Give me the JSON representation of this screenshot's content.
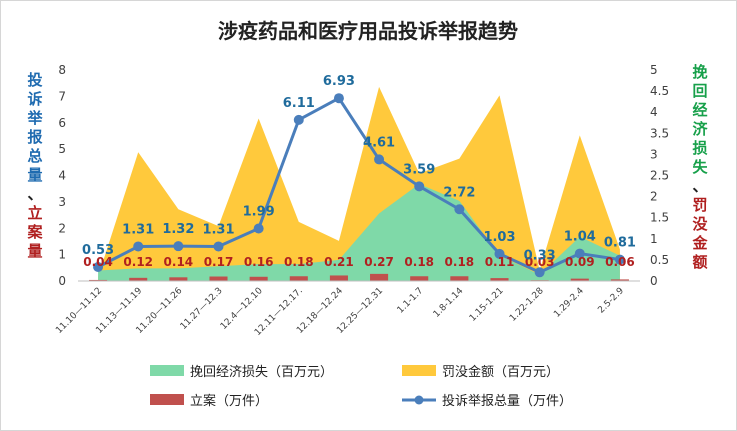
{
  "chart_data": {
    "type": "combo",
    "title": "涉疫药品和医疗用品投诉举报趋势",
    "left_axis_label": {
      "part1": [
        "投",
        "诉",
        "举",
        "报",
        "总",
        "量"
      ],
      "sep": "、",
      "part2": [
        "立",
        "案",
        "量"
      ]
    },
    "right_axis_label": {
      "part1": [
        "挽",
        "回",
        "经",
        "济",
        "损",
        "失"
      ],
      "sep": "、",
      "part2": [
        "罚",
        "没",
        "金",
        "额"
      ]
    },
    "categories": [
      "11.10—11.12",
      "11.13—11.19",
      "11.20—11.26",
      "11.27—12.3",
      "12.4—12.10",
      "12.11—12.17.",
      "12.18—12.24",
      "12.25—12.31",
      "1.1-1.7",
      "1.8-1.14",
      "1.15-1.21",
      "1.22-1.28",
      "1.29-2.4",
      "2.5-2.9"
    ],
    "y_left": {
      "min": 0,
      "max": 8,
      "ticks": [
        "0",
        "1",
        "2",
        "3",
        "4",
        "5",
        "6",
        "7",
        "8"
      ]
    },
    "y_right": {
      "min": 0,
      "max": 5,
      "ticks": [
        "0",
        "0.5",
        "1",
        "1.5",
        "2",
        "2.5",
        "3",
        "3.5",
        "4",
        "4.5",
        "5"
      ]
    },
    "series": [
      {
        "name": "挽回经济损失（百万元）",
        "type": "area",
        "axis": "right",
        "color": "#7fd9a8",
        "values": [
          0.25,
          0.3,
          0.3,
          0.35,
          0.4,
          0.4,
          0.5,
          1.6,
          2.3,
          1.9,
          0.6,
          0.15,
          1.05,
          0.6
        ]
      },
      {
        "name": "罚没金额（百万元）",
        "type": "area",
        "axis": "right",
        "color": "#ffc93c",
        "values": [
          0.1,
          3.05,
          1.7,
          1.3,
          3.85,
          1.4,
          0.95,
          4.6,
          2.55,
          2.9,
          4.4,
          0.25,
          3.45,
          0.75
        ]
      },
      {
        "name": "立案（万件）",
        "type": "bar",
        "axis": "left",
        "color": "#c0504d",
        "values": [
          0.04,
          0.12,
          0.14,
          0.17,
          0.16,
          0.18,
          0.21,
          0.27,
          0.18,
          0.18,
          0.11,
          0.03,
          0.09,
          0.06
        ],
        "labels": [
          "0.04",
          "0.12",
          "0.14",
          "0.17",
          "0.16",
          "0.18",
          "0.21",
          "0.27",
          "0.18",
          "0.18",
          "0.11",
          "0.03",
          "0.09",
          "0.06"
        ]
      },
      {
        "name": "投诉举报总量（万件）",
        "type": "line",
        "axis": "left",
        "color": "#4a7ebb",
        "values": [
          0.53,
          1.31,
          1.32,
          1.31,
          1.99,
          6.11,
          6.93,
          4.61,
          3.59,
          2.72,
          1.03,
          0.33,
          1.04,
          0.81
        ],
        "labels": [
          "0.53",
          "1.31",
          "1.32",
          "1.31",
          "1.99",
          "6.11",
          "6.93",
          "4.61",
          "3.59",
          "2.72",
          "1.03",
          "0.33",
          "1.04",
          "0.81"
        ]
      }
    ],
    "legend": [
      {
        "label": "挽回经济损失（百万元）",
        "kind": "area",
        "color": "#7fd9a8"
      },
      {
        "label": "罚没金额（百万元）",
        "kind": "area",
        "color": "#ffc93c"
      },
      {
        "label": "立案（万件）",
        "kind": "bar",
        "color": "#c0504d"
      },
      {
        "label": "投诉举报总量（万件）",
        "kind": "line",
        "color": "#4a7ebb"
      }
    ],
    "legend_position": "bottom"
  }
}
